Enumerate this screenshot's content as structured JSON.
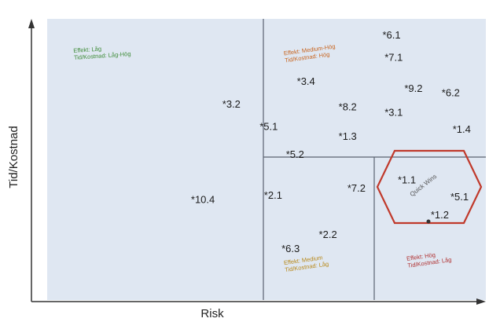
{
  "chart_data": {
    "type": "scatter",
    "xlabel": "Risk",
    "ylabel": "Tid/Kostnad",
    "xlim": [
      0,
      100
    ],
    "ylim": [
      0,
      100
    ],
    "colors": {
      "background": "#dfe7f2",
      "divider": "#5a6270",
      "hexagon": "#c0392b",
      "zone_green": "#3d8b37",
      "zone_orange": "#c8641e",
      "zone_gold": "#b8891a",
      "zone_red": "#b03030"
    },
    "zones": [
      {
        "lines": [
          "Effekt: Låg",
          "Tid/Kostnad: Låg-Hög"
        ],
        "x": 6,
        "y": 88,
        "rotate": -4,
        "color_key": "zone_green"
      },
      {
        "lines": [
          "Effekt: Medium-Hög",
          "Tid/Kostnad: Hög"
        ],
        "x": 54,
        "y": 87,
        "rotate": -8,
        "color_key": "zone_orange"
      },
      {
        "lines": [
          "Effekt: Medium",
          "Tid/Kostnad: Låg"
        ],
        "x": 54,
        "y": 12.5,
        "rotate": -8,
        "color_key": "zone_gold"
      },
      {
        "lines": [
          "Effekt: Hög",
          "Tid/Kostnad: Låg"
        ],
        "x": 82,
        "y": 14,
        "rotate": -8,
        "color_key": "zone_red"
      }
    ],
    "hexagon_label": "Quick Wins",
    "points": [
      {
        "label": "6.1",
        "x": 78.5,
        "y": 93
      },
      {
        "label": "7.1",
        "x": 79,
        "y": 85
      },
      {
        "label": "3.4",
        "x": 59,
        "y": 76.5
      },
      {
        "label": "9.2",
        "x": 83.5,
        "y": 74
      },
      {
        "label": "6.2",
        "x": 92,
        "y": 72.5
      },
      {
        "label": "3.2",
        "x": 42,
        "y": 68.5
      },
      {
        "label": "8.2",
        "x": 68.5,
        "y": 67.5
      },
      {
        "label": "3.1",
        "x": 79,
        "y": 65.5
      },
      {
        "label": "5.1",
        "x": 50.5,
        "y": 60.5
      },
      {
        "label": "1.3",
        "x": 68.5,
        "y": 57
      },
      {
        "label": "1.4",
        "x": 94.5,
        "y": 59.5
      },
      {
        "label": "5.2",
        "x": 56.5,
        "y": 50.5
      },
      {
        "label": "1.1",
        "x": 82,
        "y": 41.5
      },
      {
        "label": "7.2",
        "x": 70.5,
        "y": 38.5
      },
      {
        "label": "5.1",
        "x": 94,
        "y": 35.5
      },
      {
        "label": "2.1",
        "x": 51.5,
        "y": 36
      },
      {
        "label": "10.4",
        "x": 35.5,
        "y": 34.5
      },
      {
        "label": "1.2",
        "x": 89.5,
        "y": 29
      },
      {
        "label": "2.2",
        "x": 64,
        "y": 22
      },
      {
        "label": "6.3",
        "x": 55.5,
        "y": 17
      }
    ]
  }
}
